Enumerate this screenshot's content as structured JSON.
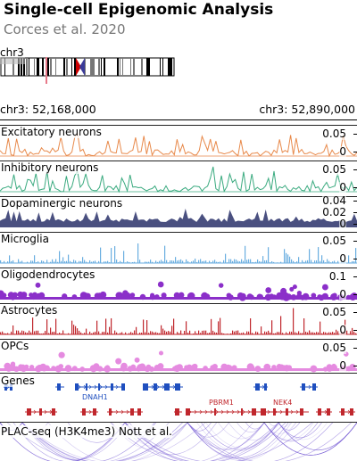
{
  "header": {
    "title": "Single-cell Epigenomic Analysis",
    "subtitle": "Corces et al. 2020"
  },
  "ideogram": {
    "chromosome": "chr3",
    "highlight_color": "#e87a8a",
    "centromere_color": "#cc0000"
  },
  "range": {
    "start_label": "chr3: 52,168,000",
    "end_label": "chr3: 52,890,000"
  },
  "tracks": [
    {
      "name": "Excitatory neurons",
      "color": "#e8894a",
      "style": "line",
      "ticks": [
        "0.05",
        "0"
      ]
    },
    {
      "name": "Inhibitory neurons",
      "color": "#3aaa7f",
      "style": "line",
      "ticks": [
        "0.05",
        "0"
      ]
    },
    {
      "name": "Dopaminergic neurons",
      "color": "#4a5080",
      "style": "area",
      "ticks": [
        "0.04",
        "0.02",
        "0"
      ]
    },
    {
      "name": "Microglia",
      "color": "#6aaee0",
      "style": "bar",
      "ticks": [
        "0.05",
        "0"
      ]
    },
    {
      "name": "Oligodendrocytes",
      "color": "#8b2fc9",
      "style": "point",
      "ticks": [
        "0.1",
        "0"
      ]
    },
    {
      "name": "Astrocytes",
      "color": "#c0272d",
      "style": "bar",
      "ticks": [
        "0.05",
        "0"
      ]
    },
    {
      "name": "OPCs",
      "color": "#e58be0",
      "style": "point",
      "ticks": [
        "0.05",
        "0"
      ]
    }
  ],
  "genes": {
    "label": "Genes",
    "plus_color": "#1f4fbf",
    "minus_color": "#c0272d",
    "names": [
      "DNAH1",
      "PBRM1",
      "NEK4"
    ]
  },
  "plac": {
    "label": "PLAC-seq (H3K4me3) Nott et al.",
    "color": "#7b61d6"
  }
}
